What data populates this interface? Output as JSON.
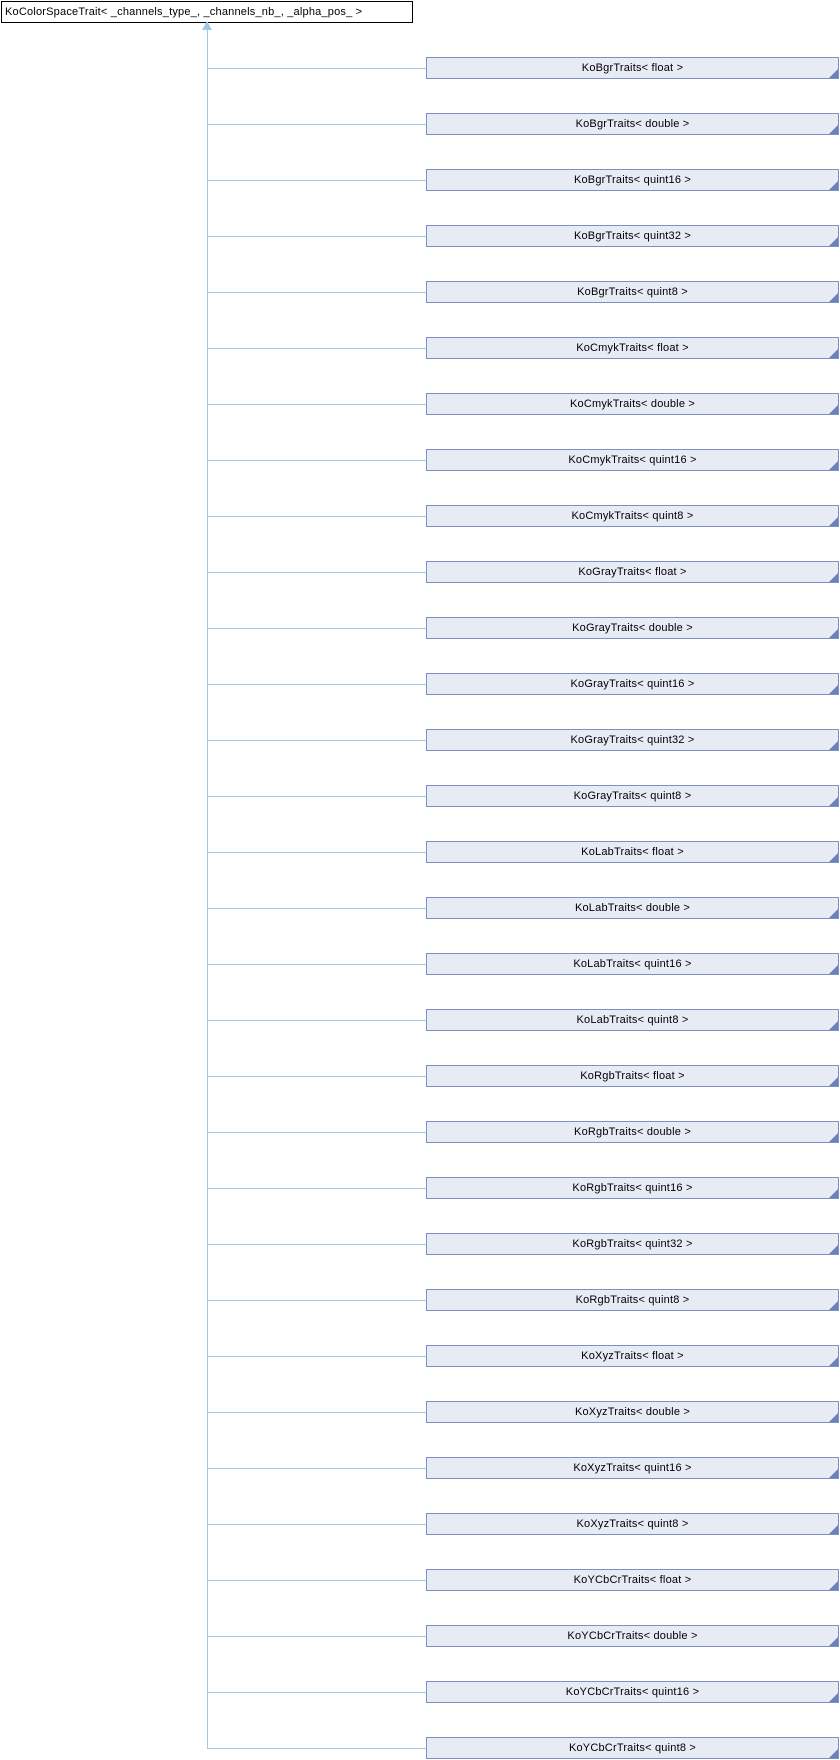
{
  "diagram": {
    "root_label": "KoColorSpaceTrait< _channels_type_, _channels_nb_, _alpha_pos_ >",
    "children": [
      {
        "label": "KoBgrTraits< float >"
      },
      {
        "label": "KoBgrTraits< double >"
      },
      {
        "label": "KoBgrTraits< quint16 >"
      },
      {
        "label": "KoBgrTraits< quint32 >"
      },
      {
        "label": "KoBgrTraits< quint8 >"
      },
      {
        "label": "KoCmykTraits< float >"
      },
      {
        "label": "KoCmykTraits< double >"
      },
      {
        "label": "KoCmykTraits< quint16 >"
      },
      {
        "label": "KoCmykTraits< quint8 >"
      },
      {
        "label": "KoGrayTraits< float >"
      },
      {
        "label": "KoGrayTraits< double >"
      },
      {
        "label": "KoGrayTraits< quint16 >"
      },
      {
        "label": "KoGrayTraits< quint32 >"
      },
      {
        "label": "KoGrayTraits< quint8 >"
      },
      {
        "label": "KoLabTraits< float >"
      },
      {
        "label": "KoLabTraits< double >"
      },
      {
        "label": "KoLabTraits< quint16 >"
      },
      {
        "label": "KoLabTraits< quint8 >"
      },
      {
        "label": "KoRgbTraits< float >"
      },
      {
        "label": "KoRgbTraits< double >"
      },
      {
        "label": "KoRgbTraits< quint16 >"
      },
      {
        "label": "KoRgbTraits< quint32 >"
      },
      {
        "label": "KoRgbTraits< quint8 >"
      },
      {
        "label": "KoXyzTraits< float >"
      },
      {
        "label": "KoXyzTraits< double >"
      },
      {
        "label": "KoXyzTraits< quint16 >"
      },
      {
        "label": "KoXyzTraits< quint8 >"
      },
      {
        "label": "KoYCbCrTraits< float >"
      },
      {
        "label": "KoYCbCrTraits< double >"
      },
      {
        "label": "KoYCbCrTraits< quint16 >"
      },
      {
        "label": "KoYCbCrTraits< quint8 >"
      }
    ]
  },
  "colors": {
    "background": "#ffffff",
    "node_fill": "#e8ebf4",
    "node_border": "#7e90c2",
    "corner_fold": "#6a82ba",
    "edge": "#a0c8e4",
    "root_border": "#000000",
    "text": "#000000"
  }
}
